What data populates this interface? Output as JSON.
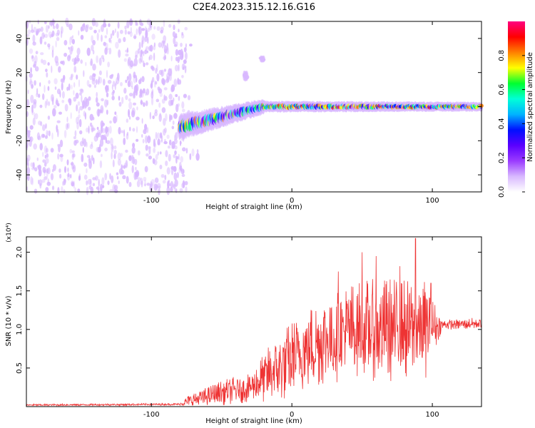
{
  "title": "C2E4.2023.315.12.16.G16",
  "chart_data": [
    {
      "type": "heatmap",
      "xlabel": "Height of straight line (km)",
      "ylabel": "Frequency (Hz)",
      "xlim": [
        -189,
        135
      ],
      "ylim": [
        -50,
        50
      ],
      "x_ticks": [
        -100,
        0,
        100
      ],
      "y_ticks": [
        -40,
        -20,
        0,
        20,
        40
      ],
      "colorbar": {
        "label": "Normalized spectral amplitude",
        "range": [
          0,
          1
        ],
        "ticks": [
          "0.0",
          "0.2",
          "0.4",
          "0.6",
          "0.8"
        ],
        "tick_values": [
          0.0,
          0.2,
          0.4,
          0.6,
          0.8
        ],
        "colormap": [
          "#ffffff",
          "#d8b8ff",
          "#9a3bff",
          "#5a00ff",
          "#0010ff",
          "#00b4ff",
          "#00ffd8",
          "#00ff30",
          "#ffff00",
          "#ff8000",
          "#ff0000",
          "#ff0080"
        ]
      },
      "regions": [
        {
          "x_range": [
            -189,
            -75
          ],
          "freq_range": [
            -50,
            50
          ],
          "amplitude_range": [
            0.05,
            0.12
          ],
          "description": "noise"
        },
        {
          "x_range": [
            -80,
            -20
          ],
          "freq_center": [
            -12,
            0
          ],
          "freq_halfwidth": [
            7,
            4
          ],
          "amplitude_range": [
            0.1,
            0.8
          ]
        },
        {
          "x_range": [
            -20,
            135
          ],
          "freq_center": [
            0,
            0
          ],
          "freq_halfwidth": [
            3,
            2.5
          ],
          "amplitude_range": [
            0.2,
            0.9
          ]
        },
        {
          "x_range": [
            -34,
            -32
          ],
          "freq_center": [
            18,
            18
          ],
          "freq_halfwidth": [
            3,
            3
          ],
          "amplitude_range": [
            0.08,
            0.08
          ]
        },
        {
          "x_range": [
            -22,
            -20
          ],
          "freq_center": [
            28,
            28
          ],
          "freq_halfwidth": [
            2,
            2
          ],
          "amplitude_range": [
            0.08,
            0.08
          ]
        }
      ]
    },
    {
      "type": "line",
      "xlabel": "Height of straight line (km)",
      "ylabel": "SNR (10 * v/v)",
      "y_multiplier": "(x10⁴)",
      "xlim": [
        -189,
        135
      ],
      "ylim": [
        0,
        2.2
      ],
      "x_ticks": [
        -100,
        0,
        100
      ],
      "y_ticks": [
        0.5,
        1.0,
        1.5,
        2.0
      ],
      "y_tick_labels": [
        "0.5",
        "1.0",
        "1.5",
        "2.0"
      ],
      "color": "#ee3333",
      "envelope": [
        {
          "x": -189,
          "base": 0.02,
          "amp": 0.02
        },
        {
          "x": -80,
          "base": 0.03,
          "amp": 0.02
        },
        {
          "x": -72,
          "base": 0.08,
          "amp": 0.15
        },
        {
          "x": -50,
          "base": 0.18,
          "amp": 0.25
        },
        {
          "x": -30,
          "base": 0.25,
          "amp": 0.3
        },
        {
          "x": -18,
          "base": 0.4,
          "amp": 0.55
        },
        {
          "x": 0,
          "base": 0.6,
          "amp": 0.8
        },
        {
          "x": 20,
          "base": 0.85,
          "amp": 0.9
        },
        {
          "x": 45,
          "base": 1.0,
          "amp": 1.0
        },
        {
          "x": 70,
          "base": 1.0,
          "amp": 1.05
        },
        {
          "x": 95,
          "base": 1.0,
          "amp": 1.0
        },
        {
          "x": 107,
          "base": 1.06,
          "amp": 0.1
        },
        {
          "x": 135,
          "base": 1.08,
          "amp": 0.12
        }
      ],
      "peaks": [
        {
          "x": 88,
          "y": 2.18
        },
        {
          "x": 50,
          "y": 2.0
        },
        {
          "x": 60,
          "y": 1.95
        },
        {
          "x": 33,
          "y": 1.75
        },
        {
          "x": 77,
          "y": 1.82
        },
        {
          "x": 99,
          "y": 1.6
        }
      ]
    }
  ]
}
